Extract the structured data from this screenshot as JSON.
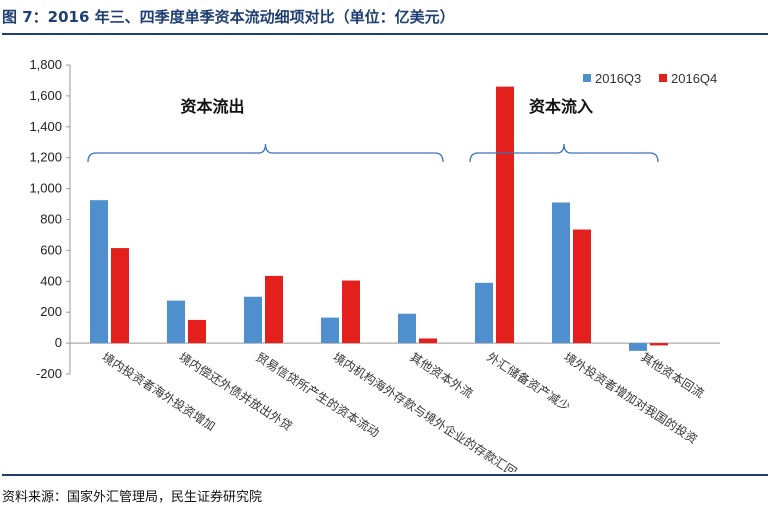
{
  "header": {
    "title": "图 7：2016 年三、四季度单季资本流动细项对比（单位：亿美元）"
  },
  "footer": {
    "source": "资料来源：国家外汇管理局，民生证券研究院"
  },
  "chart_data": {
    "type": "bar",
    "title": "图 7：2016 年三、四季度单季资本流动细项对比（单位：亿美元）",
    "ylim": [
      -200,
      1800
    ],
    "yticks": [
      -200,
      0,
      200,
      400,
      600,
      800,
      1000,
      1200,
      1400,
      1600,
      1800
    ],
    "ytick_labels": [
      "-200",
      "0",
      "200",
      "400",
      "600",
      "800",
      "1,000",
      "1,200",
      "1,400",
      "1,600",
      "1,800"
    ],
    "grid": false,
    "legend_position": "top-right",
    "categories": [
      "境内投资者海外投资增加",
      "境内偿还外债并放出外贷",
      "贸易信贷所产生的资本流动",
      "境内机构海外存款与境外企业的存款汇回",
      "其他资本外流",
      "外汇储备资产减少",
      "境外投资者增加对我国的投资",
      "其他资本回流"
    ],
    "series": [
      {
        "name": "2016Q3",
        "color": "#4f8fcd",
        "values": [
          925,
          275,
          300,
          165,
          190,
          390,
          910,
          -50
        ]
      },
      {
        "name": "2016Q4",
        "color": "#e3201b",
        "values": [
          615,
          150,
          435,
          405,
          30,
          1660,
          735,
          -15
        ]
      }
    ],
    "annotations": [
      {
        "text": "资本流出",
        "from_category": 0,
        "to_category": 4
      },
      {
        "text": "资本流入",
        "from_category": 5,
        "to_category": 7
      }
    ],
    "bracket_color": "#3a73b7"
  }
}
